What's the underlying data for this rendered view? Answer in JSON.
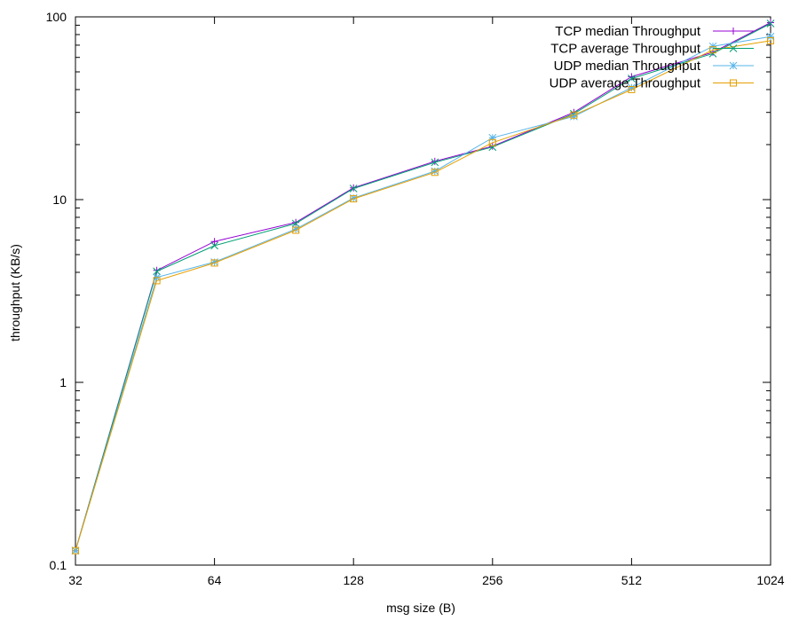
{
  "chart_data": {
    "type": "line",
    "xlabel": "msg size (B)",
    "ylabel": "throughput (KB/s)",
    "xscale": "log2",
    "yscale": "log10",
    "xlim": [
      32,
      1024
    ],
    "ylim": [
      0.1,
      100
    ],
    "x_ticks": [
      32,
      64,
      128,
      256,
      512,
      1024
    ],
    "x_tick_labels": [
      "32",
      "64",
      "128",
      "256",
      "512",
      "1024"
    ],
    "y_ticks": [
      0.1,
      1,
      10,
      100
    ],
    "y_tick_labels": [
      "0.1",
      "1",
      "10",
      "100"
    ],
    "grid": false,
    "legend_position": "top-right",
    "x": [
      32,
      48,
      64,
      96,
      128,
      192,
      256,
      384,
      512,
      768,
      1024
    ],
    "series": [
      {
        "name": "TCP median Throughput",
        "color": "#9400D3",
        "marker": "plus",
        "values": [
          0.12,
          4.1,
          5.9,
          7.5,
          11.6,
          16.2,
          19.6,
          30,
          47,
          64,
          93
        ]
      },
      {
        "name": "TCP average Throughput",
        "color": "#009E73",
        "marker": "cross",
        "values": [
          0.12,
          4.05,
          5.6,
          7.4,
          11.5,
          16.0,
          19.4,
          29.5,
          46,
          63,
          92
        ]
      },
      {
        "name": "UDP median Throughput",
        "color": "#56B4E9",
        "marker": "star",
        "values": [
          0.12,
          3.75,
          4.55,
          6.9,
          10.2,
          14.3,
          21.8,
          28.5,
          41,
          69,
          78
        ]
      },
      {
        "name": "UDP average Throughput",
        "color": "#E69F00",
        "marker": "square",
        "values": [
          0.12,
          3.6,
          4.5,
          6.8,
          10.1,
          14.1,
          20.5,
          29.0,
          40,
          66,
          74
        ]
      }
    ]
  }
}
